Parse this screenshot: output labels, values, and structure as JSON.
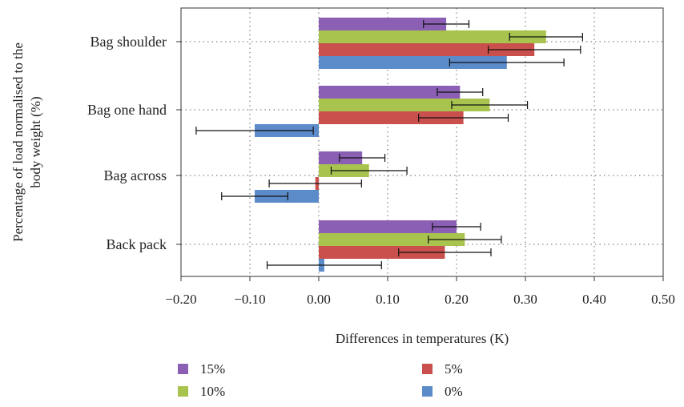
{
  "chart_data": {
    "type": "bar",
    "orientation": "horizontal",
    "categories": [
      "Bag shoulder",
      "Bag one hand",
      "Bag across",
      "Back pack"
    ],
    "series": [
      {
        "name": "15%",
        "color": "#8B5FB4",
        "values": [
          0.185,
          0.205,
          0.063,
          0.2
        ],
        "error": [
          0.033,
          0.033,
          0.033,
          0.035
        ]
      },
      {
        "name": "10%",
        "color": "#A8C44E",
        "values": [
          0.33,
          0.248,
          0.073,
          0.212
        ],
        "error": [
          0.053,
          0.055,
          0.055,
          0.053
        ]
      },
      {
        "name": "5%",
        "color": "#C9504C",
        "values": [
          0.313,
          0.21,
          -0.005,
          0.183
        ],
        "error": [
          0.067,
          0.065,
          0.067,
          0.067
        ]
      },
      {
        "name": "0%",
        "color": "#5B8BC8",
        "values": [
          0.273,
          -0.093,
          -0.093,
          0.008
        ],
        "error": [
          0.083,
          0.085,
          0.048,
          0.083
        ]
      }
    ],
    "xlabel": "Differences in temperatures (K)",
    "ylabel": "Percentage of load normalised to the body weight (%)",
    "xlim": [
      -0.2,
      0.5
    ],
    "xticks": [
      "−0.20",
      "−0.10",
      "0.00",
      "0.10",
      "0.20",
      "0.30",
      "0.40",
      "0.50"
    ],
    "grid": true,
    "legend_position": "bottom",
    "legend": [
      "15%",
      "5%",
      "10%",
      "0%"
    ]
  }
}
